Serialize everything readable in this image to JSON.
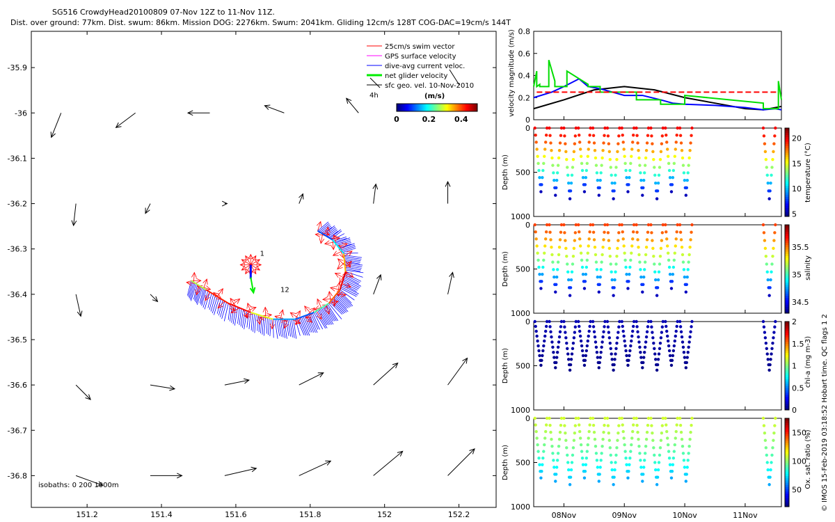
{
  "header": {
    "line1": "SG516 CrowdyHead20100809 07-Nov 12Z to 11-Nov 11Z.",
    "line2": "Dist. over ground: 77km. Dist. swum: 86km. Mission DOG: 2276km. Swum: 2041km. Gliding 12cm/s 128T COG-DAC=19cm/s 144T"
  },
  "credit": "© IMOS 15-Feb-2019 03:18:52 Hobart time. QC flags 1  2",
  "chart_data": [
    {
      "type": "map",
      "xlim": [
        151.05,
        152.3
      ],
      "ylim": [
        -36.87,
        -35.82
      ],
      "x_ticks": [
        "151.2",
        "151.4",
        "151.6",
        "151.8",
        "152",
        "152.2"
      ],
      "y_ticks": [
        "-35.9",
        "-36",
        "-36.1",
        "-36.2",
        "-36.3",
        "-36.4",
        "-36.5",
        "-36.6",
        "-36.7",
        "-36.8"
      ],
      "legend": [
        {
          "label": "25cm/s swim vector",
          "color": "#ff0000"
        },
        {
          "label": "GPS surface velocity",
          "color": "#ff00ff"
        },
        {
          "label": "dive-avg current veloc.",
          "color": "#0000ff"
        },
        {
          "label": "net glider velocity",
          "color": "#00ee00"
        },
        {
          "label": "sfc geo. vel. 10-Nov-2010",
          "color": "#000000"
        }
      ],
      "legend_placement": "top-right",
      "scale_label": "4h",
      "colorbar": {
        "title": "(m/s)",
        "ticks": [
          "0",
          "0.2",
          "0.4"
        ],
        "range": [
          0,
          0.5
        ]
      },
      "annotations": [
        "1",
        "12"
      ],
      "isobath_label": "isobaths: 0   200   1000m",
      "track": [
        [
          151.48,
          -36.37
        ],
        [
          151.52,
          -36.39
        ],
        [
          151.58,
          -36.42
        ],
        [
          151.64,
          -36.44
        ],
        [
          151.7,
          -36.455
        ],
        [
          151.76,
          -36.455
        ],
        [
          151.81,
          -36.44
        ],
        [
          151.85,
          -36.42
        ],
        [
          151.88,
          -36.39
        ],
        [
          151.895,
          -36.35
        ],
        [
          151.89,
          -36.31
        ],
        [
          151.86,
          -36.28
        ],
        [
          151.82,
          -36.26
        ]
      ],
      "geo_vectors": [
        {
          "lon": 151.13,
          "lat": -36.0,
          "u": -0.2,
          "v": -0.5
        },
        {
          "lon": 151.33,
          "lat": -36.0,
          "u": -0.4,
          "v": -0.3
        },
        {
          "lon": 151.53,
          "lat": -36.0,
          "u": -0.45,
          "v": 0.0
        },
        {
          "lon": 151.73,
          "lat": -36.0,
          "u": -0.4,
          "v": 0.15
        },
        {
          "lon": 151.93,
          "lat": -36.0,
          "u": -0.25,
          "v": 0.3
        },
        {
          "lon": 151.17,
          "lat": -36.2,
          "u": -0.05,
          "v": -0.45
        },
        {
          "lon": 151.37,
          "lat": -36.2,
          "u": -0.1,
          "v": -0.2
        },
        {
          "lon": 151.57,
          "lat": -36.2,
          "u": 0.05,
          "v": 0.0
        },
        {
          "lon": 151.77,
          "lat": -36.2,
          "u": 0.08,
          "v": 0.2
        },
        {
          "lon": 151.97,
          "lat": -36.2,
          "u": 0.05,
          "v": 0.4
        },
        {
          "lon": 152.17,
          "lat": -36.2,
          "u": 0.0,
          "v": 0.45
        },
        {
          "lon": 151.17,
          "lat": -36.4,
          "u": 0.1,
          "v": -0.45
        },
        {
          "lon": 151.37,
          "lat": -36.4,
          "u": 0.15,
          "v": -0.15
        },
        {
          "lon": 151.97,
          "lat": -36.4,
          "u": 0.15,
          "v": 0.4
        },
        {
          "lon": 152.17,
          "lat": -36.4,
          "u": 0.1,
          "v": 0.45
        },
        {
          "lon": 151.17,
          "lat": -36.6,
          "u": 0.3,
          "v": -0.3
        },
        {
          "lon": 151.37,
          "lat": -36.6,
          "u": 0.5,
          "v": -0.08
        },
        {
          "lon": 151.57,
          "lat": -36.6,
          "u": 0.5,
          "v": 0.1
        },
        {
          "lon": 151.77,
          "lat": -36.6,
          "u": 0.5,
          "v": 0.25
        },
        {
          "lon": 151.97,
          "lat": -36.6,
          "u": 0.5,
          "v": 0.45
        },
        {
          "lon": 152.17,
          "lat": -36.6,
          "u": 0.4,
          "v": 0.55
        },
        {
          "lon": 151.17,
          "lat": -36.8,
          "u": 0.55,
          "v": -0.2
        },
        {
          "lon": 151.37,
          "lat": -36.8,
          "u": 0.65,
          "v": 0.0
        },
        {
          "lon": 151.57,
          "lat": -36.8,
          "u": 0.65,
          "v": 0.15
        },
        {
          "lon": 151.77,
          "lat": -36.8,
          "u": 0.65,
          "v": 0.3
        },
        {
          "lon": 151.97,
          "lat": -36.8,
          "u": 0.6,
          "v": 0.5
        },
        {
          "lon": 152.17,
          "lat": -36.8,
          "u": 0.55,
          "v": 0.55
        }
      ]
    },
    {
      "type": "line",
      "ylabel": "velocity magnitude (m/s)",
      "ylim": [
        0,
        0.8
      ],
      "y_ticks": [
        "0",
        "0.2",
        "0.4",
        "0.6",
        "0.8"
      ],
      "xlim": [
        7.5,
        11.6
      ],
      "series": [
        {
          "color": "#000000",
          "x": [
            7.5,
            8.0,
            8.5,
            9.0,
            9.5,
            10.0,
            10.5,
            11.0,
            11.3,
            11.6
          ],
          "y": [
            0.1,
            0.18,
            0.27,
            0.3,
            0.27,
            0.2,
            0.15,
            0.1,
            0.09,
            0.12
          ]
        },
        {
          "color": "#0000ff",
          "x": [
            7.5,
            7.8,
            8.0,
            8.25,
            8.4,
            8.6,
            8.8,
            9.0,
            9.3,
            9.6,
            9.8,
            10.0,
            10.5,
            11.0,
            11.3,
            11.5,
            11.6
          ],
          "y": [
            0.2,
            0.25,
            0.3,
            0.37,
            0.3,
            0.28,
            0.25,
            0.22,
            0.22,
            0.18,
            0.15,
            0.14,
            0.13,
            0.11,
            0.09,
            0.1,
            0.09
          ]
        },
        {
          "color": "#00dd00",
          "x": [
            7.5,
            7.55,
            7.55,
            7.6,
            7.6,
            7.75,
            7.75,
            7.85,
            7.85,
            8.05,
            8.05,
            8.4,
            8.4,
            8.6,
            8.6,
            9.2,
            9.2,
            9.6,
            9.6,
            10.0,
            10.0,
            11.3,
            11.3,
            11.55,
            11.55,
            11.6
          ],
          "y": [
            0.3,
            0.44,
            0.3,
            0.32,
            0.3,
            0.3,
            0.54,
            0.35,
            0.3,
            0.3,
            0.44,
            0.32,
            0.3,
            0.3,
            0.25,
            0.25,
            0.18,
            0.18,
            0.14,
            0.14,
            0.22,
            0.15,
            0.1,
            0.1,
            0.35,
            0.18
          ]
        },
        {
          "color": "#ff0000",
          "x": [
            7.55,
            9.1,
            10.05,
            11.3,
            11.55
          ],
          "y": [
            0.25,
            0.25,
            0.25,
            0.25,
            0.25
          ],
          "dashed": true
        }
      ]
    },
    {
      "type": "scatter",
      "ylabel": "Depth (m)",
      "ylim": [
        1000,
        0
      ],
      "y_ticks": [
        "0",
        "500",
        "1000"
      ],
      "colorbar_label": "temperature (°C)",
      "colorbar_range": [
        4.5,
        22
      ],
      "colorbar_ticks": [
        "5",
        "10",
        "15",
        "20"
      ],
      "surface_value": 20,
      "deep_value": 5.5,
      "max_depth": 800
    },
    {
      "type": "scatter",
      "ylabel": "Depth (m)",
      "ylim": [
        1000,
        0
      ],
      "y_ticks": [
        "0",
        "500",
        "1000"
      ],
      "colorbar_label": "salinity",
      "colorbar_range": [
        34.3,
        35.9
      ],
      "colorbar_ticks": [
        "34.5",
        "35",
        "35.5"
      ],
      "surface_value": 35.6,
      "deep_value": 34.4,
      "max_depth": 800
    },
    {
      "type": "scatter",
      "ylabel": "Depth (m)",
      "ylim": [
        1000,
        0
      ],
      "y_ticks": [
        "0",
        "500",
        "1000"
      ],
      "colorbar_label": "chl-a (mg m-3)",
      "colorbar_range": [
        0,
        2
      ],
      "colorbar_ticks": [
        "0",
        "0.5",
        "1",
        "1.5",
        "2"
      ],
      "surface_value": 0.1,
      "deep_value": 0.02,
      "max_depth": 550
    },
    {
      "type": "scatter",
      "ylabel": "Depth (m)",
      "ylim": [
        1000,
        0
      ],
      "y_ticks": [
        "0",
        "500",
        "1000"
      ],
      "colorbar_label": "Ox. sat. ratio (%)",
      "colorbar_range": [
        20,
        175
      ],
      "colorbar_ticks": [
        "50",
        "100",
        "150"
      ],
      "surface_value": 110,
      "deep_value": 65,
      "max_depth": 750
    },
    {
      "type": "time_axis",
      "x_ticks": [
        "08Nov",
        "09Nov",
        "10Nov",
        "11Nov"
      ],
      "xlim": [
        7.5,
        11.6
      ]
    }
  ]
}
